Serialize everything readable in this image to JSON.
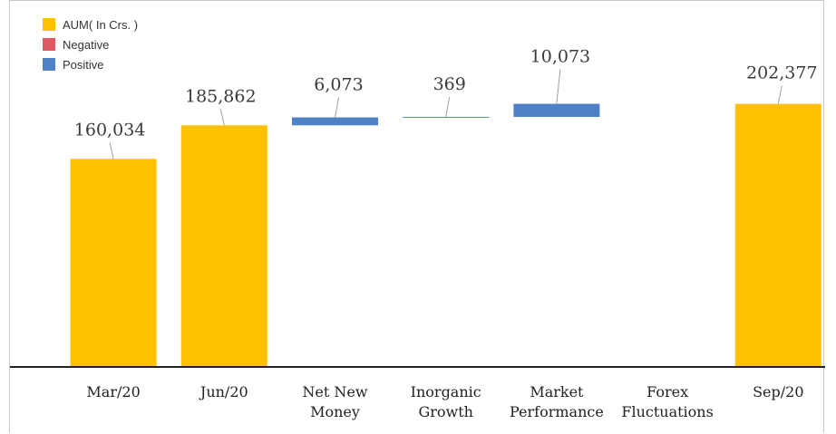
{
  "chart_data": {
    "type": "bar",
    "subtype": "waterfall",
    "categories": [
      "Mar/20",
      "Jun/20",
      "Net New Money",
      "Inorganic Growth",
      "Market Performance",
      "Forex Fluctuations",
      "Sep/20"
    ],
    "category_lines": [
      [
        "Mar/20"
      ],
      [
        "Jun/20"
      ],
      [
        "Net New",
        "Money"
      ],
      [
        "Inorganic",
        "Growth"
      ],
      [
        "Market",
        "Performance"
      ],
      [
        "Forex",
        "Fluctuations"
      ],
      [
        "Sep/20"
      ]
    ],
    "series": [
      {
        "name": "AUM( In Crs. )",
        "color": "#FFC000",
        "kind": "total",
        "values": [
          160034,
          185862,
          null,
          null,
          null,
          null,
          202377
        ]
      },
      {
        "name": "Negative",
        "color": "#E05A63",
        "kind": "delta",
        "values": [
          null,
          null,
          null,
          null,
          null,
          null,
          null
        ]
      },
      {
        "name": "Positive",
        "color": "#4F81C7",
        "kind": "delta",
        "values": [
          null,
          null,
          6073,
          369,
          10073,
          null,
          null
        ]
      }
    ],
    "data_labels": [
      "160,034",
      "185,862",
      "6,073",
      "369",
      "10,073",
      "",
      "202,377"
    ],
    "title": "",
    "xlabel": "",
    "ylabel": "",
    "legend_position": "top-left",
    "grid": false
  }
}
